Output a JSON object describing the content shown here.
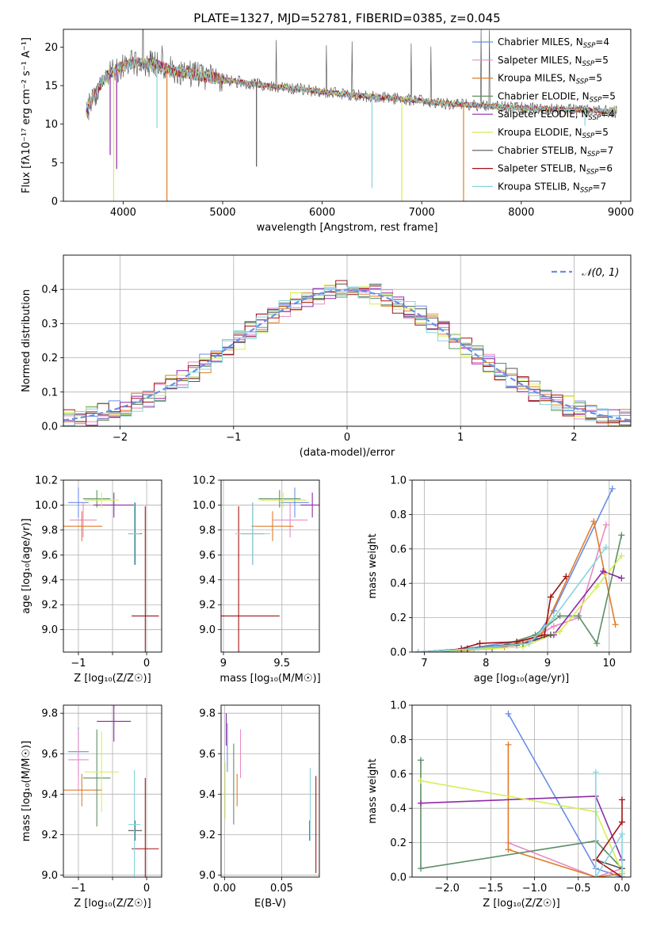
{
  "figure_title": "PLATE=1327, MJD=52781, FIBERID=0385, z=0.045",
  "colors": {
    "Chabrier MILES": "#6a8ee8",
    "Salpeter MILES": "#e98bc4",
    "Kroupa MILES": "#e07d2a",
    "Chabrier ELODIE": "#5e8f68",
    "Salpeter ELODIE": "#8e2aa6",
    "Kroupa ELODIE": "#d6ee52",
    "Chabrier STELIB": "#555555",
    "Salpeter STELIB": "#a31414",
    "Kroupa STELIB": "#86d6dd",
    "gauss": "#6a8ee8"
  },
  "chart_data": [
    {
      "id": "spectrum",
      "type": "line",
      "title": "PLATE=1327, MJD=52781, FIBERID=0385, z=0.045",
      "xlabel": "wavelength [Angstrom, rest frame]",
      "ylabel": "Flux [fλ10⁻¹⁷ erg cm⁻² s⁻¹ A⁻¹]",
      "xlim": [
        3400,
        9100
      ],
      "ylim": [
        0,
        22.3
      ],
      "xticks": [
        4000,
        5000,
        6000,
        7000,
        8000,
        9000
      ],
      "yticks": [
        0,
        5,
        10,
        15,
        20
      ],
      "grid": false,
      "legend_position": "top-right",
      "legend": [
        {
          "model": "Chabrier MILES",
          "label": "Chabrier MILES, N",
          "sub": "SSP",
          "tail": "=4"
        },
        {
          "model": "Salpeter MILES",
          "label": "Salpeter MILES, N",
          "sub": "SSP",
          "tail": "=5"
        },
        {
          "model": "Kroupa MILES",
          "label": "Kroupa MILES, N",
          "sub": "SSP",
          "tail": "=5"
        },
        {
          "model": "Chabrier ELODIE",
          "label": "Chabrier ELODIE, N",
          "sub": "SSP",
          "tail": "=5"
        },
        {
          "model": "Salpeter ELODIE",
          "label": "Salpeter ELODIE, N",
          "sub": "SSP",
          "tail": "=4"
        },
        {
          "model": "Kroupa ELODIE",
          "label": "Kroupa ELODIE, N",
          "sub": "SSP",
          "tail": "=5"
        },
        {
          "model": "Chabrier STELIB",
          "label": "Chabrier STELIB, N",
          "sub": "SSP",
          "tail": "=7"
        },
        {
          "model": "Salpeter STELIB",
          "label": "Salpeter STELIB, N",
          "sub": "SSP",
          "tail": "=6"
        },
        {
          "model": "Kroupa STELIB",
          "label": "Kroupa STELIB, N",
          "sub": "SSP",
          "tail": "=7"
        }
      ],
      "continuum": {
        "x": [
          3630,
          3700,
          3800,
          3900,
          4000,
          4100,
          4300,
          4500,
          4800,
          5000,
          5300,
          5600,
          6000,
          6300,
          6600,
          7000,
          7300,
          7600,
          8000,
          8400,
          8800,
          9000
        ],
        "y": [
          11.5,
          13.5,
          15.8,
          16.8,
          17.5,
          18.0,
          17.8,
          17.0,
          16.2,
          15.8,
          15.2,
          14.8,
          14.2,
          13.8,
          13.5,
          13.0,
          12.6,
          12.4,
          12.1,
          11.9,
          11.7,
          11.6
        ]
      },
      "dips": [
        {
          "model": "Salpeter ELODIE",
          "x": 3870,
          "y": 6.0
        },
        {
          "model": "Salpeter ELODIE",
          "x": 3935,
          "y": 4.2
        },
        {
          "model": "Kroupa ELODIE",
          "x": 3905,
          "y": 0
        },
        {
          "model": "Kroupa MILES",
          "x": 4440,
          "y": 0
        },
        {
          "model": "Kroupa STELIB",
          "x": 4340,
          "y": 9.5
        },
        {
          "model": "Chabrier STELIB",
          "x": 5340,
          "y": 4.5
        },
        {
          "model": "Kroupa STELIB",
          "x": 6500,
          "y": 1.7
        },
        {
          "model": "Kroupa ELODIE",
          "x": 6800,
          "y": 0
        },
        {
          "model": "Kroupa MILES",
          "x": 7420,
          "y": 0
        },
        {
          "model": "Kroupa STELIB",
          "x": 8640,
          "y": 9.8
        }
      ]
    },
    {
      "id": "residuals",
      "type": "step",
      "xlabel": "(data-model)/error",
      "ylabel": "Normed distribution",
      "xlim": [
        -2.5,
        2.5
      ],
      "ylim": [
        0,
        0.5
      ],
      "xticks": [
        -2,
        -1,
        0,
        1,
        2
      ],
      "yticks": [
        0.0,
        0.1,
        0.2,
        0.3,
        0.4
      ],
      "grid": true,
      "legend_position": "top-right",
      "legend_label": "𝒩(0, 1)",
      "bin_width": 0.1,
      "reference_curve": "standard normal N(0,1)"
    },
    {
      "id": "age-vs-Z",
      "type": "errorbar",
      "xlabel": "Z [log₁₀(Z/Z☉)]",
      "ylabel": "age  [log₁₀(age/yr)]",
      "xlim": [
        -1.22,
        0.22
      ],
      "ylim": [
        8.82,
        10.2
      ],
      "xticks": [
        -1,
        -0.5,
        0
      ],
      "xticklabels": [
        "−1",
        "",
        "0"
      ],
      "yticks": [
        9.0,
        9.2,
        9.4,
        9.6,
        9.8,
        10.0,
        10.2
      ],
      "grid": true,
      "points": [
        {
          "model": "Chabrier MILES",
          "x": -1.0,
          "xerr": 0.15,
          "y": 10.02,
          "yerr": 0.12
        },
        {
          "model": "Salpeter MILES",
          "x": -0.93,
          "xerr": 0.2,
          "y": 9.88,
          "yerr": 0.14
        },
        {
          "model": "Kroupa MILES",
          "x": -0.95,
          "xerr": 0.3,
          "y": 9.83,
          "yerr": 0.12
        },
        {
          "model": "Chabrier ELODIE",
          "x": -0.73,
          "xerr": 0.2,
          "y": 10.05,
          "yerr": 0.07
        },
        {
          "model": "Salpeter ELODIE",
          "x": -0.48,
          "xerr": 0.3,
          "y": 10.0,
          "yerr": 0.1
        },
        {
          "model": "Kroupa ELODIE",
          "x": -0.66,
          "xerr": 0.25,
          "y": 10.04,
          "yerr": 0.06
        },
        {
          "model": "Chabrier STELIB",
          "x": -0.17,
          "xerr": 0.1,
          "y": 9.77,
          "yerr": 0.25
        },
        {
          "model": "Salpeter STELIB",
          "x": -0.02,
          "xerr": 0.2,
          "y": 9.11,
          "yerr": 0.88
        },
        {
          "model": "Kroupa STELIB",
          "x": -0.18,
          "xerr": 0.09,
          "y": 9.77,
          "yerr": 0.25
        }
      ]
    },
    {
      "id": "age-vs-mass",
      "type": "errorbar",
      "xlabel": "mass [log₁₀(M/M☉)]",
      "ylabel": "",
      "xlim": [
        8.98,
        9.82
      ],
      "ylim": [
        8.82,
        10.2
      ],
      "xticks": [
        9.0,
        9.5
      ],
      "yticks": [
        9.0,
        9.2,
        9.4,
        9.6,
        9.8,
        10.0,
        10.2
      ],
      "grid": true,
      "points": [
        {
          "model": "Chabrier MILES",
          "x": 9.61,
          "xerr": 0.12,
          "y": 10.02,
          "yerr": 0.12
        },
        {
          "model": "Salpeter MILES",
          "x": 9.57,
          "xerr": 0.15,
          "y": 9.88,
          "yerr": 0.14
        },
        {
          "model": "Kroupa MILES",
          "x": 9.42,
          "xerr": 0.18,
          "y": 9.83,
          "yerr": 0.12
        },
        {
          "model": "Chabrier ELODIE",
          "x": 9.48,
          "xerr": 0.18,
          "y": 10.05,
          "yerr": 0.07
        },
        {
          "model": "Salpeter ELODIE",
          "x": 9.76,
          "xerr": 0.1,
          "y": 10.0,
          "yerr": 0.1
        },
        {
          "model": "Kroupa ELODIE",
          "x": 9.51,
          "xerr": 0.2,
          "y": 10.04,
          "yerr": 0.06
        },
        {
          "model": "Chabrier STELIB",
          "x": 9.25,
          "xerr": 0.1,
          "y": 9.77,
          "yerr": 0.25
        },
        {
          "model": "Salpeter STELIB",
          "x": 9.13,
          "xerr": 0.35,
          "y": 9.11,
          "yerr": 0.88
        },
        {
          "model": "Kroupa STELIB",
          "x": 9.25,
          "xerr": 0.15,
          "y": 9.77,
          "yerr": 0.25
        }
      ]
    },
    {
      "id": "weight-vs-age",
      "type": "line",
      "xlabel": "age  [log₁₀(age/yr)]",
      "ylabel": "mass weight",
      "xlim": [
        6.8,
        10.35
      ],
      "ylim": [
        0,
        1.0
      ],
      "xticks": [
        7,
        8,
        9,
        10
      ],
      "yticks": [
        0.0,
        0.2,
        0.4,
        0.6,
        0.8,
        1.0
      ],
      "grid": true,
      "series": [
        {
          "model": "Chabrier MILES",
          "x": [
            6.9,
            7.7,
            8.8,
            9.1,
            10.05
          ],
          "y": [
            0.0,
            0.02,
            0.08,
            0.24,
            0.95
          ]
        },
        {
          "model": "Salpeter MILES",
          "x": [
            6.9,
            7.7,
            8.6,
            9.1,
            9.5,
            9.95
          ],
          "y": [
            0.0,
            0.02,
            0.05,
            0.15,
            0.2,
            0.74
          ]
        },
        {
          "model": "Kroupa MILES",
          "x": [
            6.9,
            7.7,
            8.3,
            8.9,
            9.75,
            10.1
          ],
          "y": [
            0.0,
            0.01,
            0.03,
            0.1,
            0.76,
            0.16
          ]
        },
        {
          "model": "Chabrier ELODIE",
          "x": [
            6.9,
            8.1,
            8.8,
            9.2,
            9.5,
            9.8,
            10.2
          ],
          "y": [
            0.0,
            0.02,
            0.1,
            0.21,
            0.21,
            0.05,
            0.68
          ]
        },
        {
          "model": "Salpeter ELODIE",
          "x": [
            6.9,
            8.5,
            9.1,
            9.9,
            10.2
          ],
          "y": [
            0.0,
            0.04,
            0.1,
            0.47,
            0.43
          ]
        },
        {
          "model": "Kroupa ELODIE",
          "x": [
            6.9,
            8.6,
            9.2,
            9.8,
            10.2
          ],
          "y": [
            0.0,
            0.03,
            0.12,
            0.38,
            0.56
          ]
        },
        {
          "model": "Chabrier STELIB",
          "x": [
            6.9,
            7.7,
            8.6,
            9.05
          ],
          "y": [
            0.0,
            0.02,
            0.05,
            0.1
          ]
        },
        {
          "model": "Salpeter STELIB",
          "x": [
            7.6,
            7.9,
            8.5,
            8.95,
            9.05,
            9.3
          ],
          "y": [
            0.02,
            0.05,
            0.06,
            0.1,
            0.32,
            0.44
          ]
        },
        {
          "model": "Kroupa STELIB",
          "x": [
            6.9,
            7.8,
            8.7,
            9.1,
            9.95
          ],
          "y": [
            0.0,
            0.02,
            0.05,
            0.2,
            0.61
          ]
        }
      ]
    },
    {
      "id": "mass-vs-Z",
      "type": "errorbar",
      "xlabel": "Z [log₁₀(Z/Z☉)]",
      "ylabel": "mass [log₁₀(M/M☉)]",
      "xlim": [
        -1.22,
        0.22
      ],
      "ylim": [
        8.99,
        9.84
      ],
      "xticks": [
        -1,
        -0.5,
        0
      ],
      "xticklabels": [
        "−1",
        "",
        "0"
      ],
      "yticks": [
        9.0,
        9.2,
        9.4,
        9.6,
        9.8
      ],
      "grid": true,
      "points": [
        {
          "model": "Chabrier MILES",
          "x": -1.0,
          "xerr": 0.15,
          "y": 9.61,
          "yerr": 0.12
        },
        {
          "model": "Salpeter MILES",
          "x": -1.0,
          "xerr": 0.15,
          "y": 9.57,
          "yerr": 0.15
        },
        {
          "model": "Kroupa MILES",
          "x": -0.95,
          "xerr": 0.3,
          "y": 9.42,
          "yerr": 0.08
        },
        {
          "model": "Chabrier ELODIE",
          "x": -0.73,
          "xerr": 0.2,
          "y": 9.48,
          "yerr": 0.24
        },
        {
          "model": "Salpeter ELODIE",
          "x": -0.48,
          "xerr": 0.25,
          "y": 9.76,
          "yerr": 0.1
        },
        {
          "model": "Kroupa ELODIE",
          "x": -0.66,
          "xerr": 0.25,
          "y": 9.51,
          "yerr": 0.2
        },
        {
          "model": "Chabrier STELIB",
          "x": -0.17,
          "xerr": 0.1,
          "y": 9.22,
          "yerr": 0.05
        },
        {
          "model": "Salpeter STELIB",
          "x": -0.02,
          "xerr": 0.2,
          "y": 9.13,
          "yerr": 0.35
        },
        {
          "model": "Kroupa STELIB",
          "x": -0.18,
          "xerr": 0.09,
          "y": 9.25,
          "yerr": 0.27
        }
      ]
    },
    {
      "id": "mass-vs-ebv",
      "type": "errorbar",
      "xlabel": "E(B-V)",
      "ylabel": "",
      "xlim": [
        -0.003,
        0.083
      ],
      "ylim": [
        8.99,
        9.84
      ],
      "xticks": [
        0.0,
        0.05
      ],
      "xticklabels": [
        "0.00",
        "0.05"
      ],
      "yticks": [
        9.0,
        9.2,
        9.4,
        9.6,
        9.8
      ],
      "grid": true,
      "points": [
        {
          "model": "Chabrier MILES",
          "x": 0.0025,
          "xerr": 0,
          "y": 9.63,
          "yerr": 0.12
        },
        {
          "model": "Salpeter MILES",
          "x": 0.014,
          "xerr": 0,
          "y": 9.6,
          "yerr": 0.12
        },
        {
          "model": "Kroupa MILES",
          "x": 0.011,
          "xerr": 0,
          "y": 9.42,
          "yerr": 0.08
        },
        {
          "model": "Chabrier ELODIE",
          "x": 0.008,
          "xerr": 0,
          "y": 9.45,
          "yerr": 0.2
        },
        {
          "model": "Salpeter ELODIE",
          "x": 0.0015,
          "xerr": 0,
          "y": 9.72,
          "yerr": 0.08
        },
        {
          "model": "Kroupa ELODIE",
          "x": 0.0005,
          "xerr": 0,
          "y": 9.42,
          "yerr": 0.14
        },
        {
          "model": "Chabrier STELIB",
          "x": 0.0745,
          "xerr": 0,
          "y": 9.22,
          "yerr": 0.05
        },
        {
          "model": "Salpeter STELIB",
          "x": 0.08,
          "xerr": 0,
          "y": 9.25,
          "yerr": 0.24
        },
        {
          "model": "Kroupa STELIB",
          "x": 0.075,
          "xerr": 0,
          "y": 9.35,
          "yerr": 0.18
        }
      ]
    },
    {
      "id": "weight-vs-Z",
      "type": "line",
      "xlabel": "Z [log₁₀(Z/Z☉)]",
      "ylabel": "mass weight",
      "xlim": [
        -2.4,
        0.1
      ],
      "ylim": [
        0,
        1.0
      ],
      "xticks": [
        -2.0,
        -1.5,
        -1.0,
        -0.5,
        0.0
      ],
      "xticklabels": [
        "−2.0",
        "−1.5",
        "−1.0",
        "−0.5",
        "0.0"
      ],
      "yticks": [
        0.0,
        0.2,
        0.4,
        0.6,
        0.8,
        1.0
      ],
      "grid": true,
      "series": [
        {
          "model": "Chabrier MILES",
          "x": [
            -1.3,
            -0.3,
            0.0
          ],
          "y": [
            0.95,
            0.05,
            0.0
          ]
        },
        {
          "model": "Salpeter MILES",
          "x": [
            -1.3,
            -0.3,
            0.0
          ],
          "y": [
            0.2,
            0.0,
            0.05
          ]
        },
        {
          "model": "Kroupa MILES",
          "x": [
            -1.3,
            -1.3,
            -0.3,
            0.0
          ],
          "y": [
            0.77,
            0.16,
            0.0,
            0.02
          ]
        },
        {
          "model": "Chabrier ELODIE",
          "x": [
            -2.3,
            -2.3,
            -0.3,
            0.0
          ],
          "y": [
            0.68,
            0.05,
            0.21,
            0.05
          ]
        },
        {
          "model": "Salpeter ELODIE",
          "x": [
            -2.3,
            -0.3,
            0.0
          ],
          "y": [
            0.43,
            0.47,
            0.1
          ]
        },
        {
          "model": "Kroupa ELODIE",
          "x": [
            -2.3,
            -0.3,
            0.0
          ],
          "y": [
            0.56,
            0.38,
            0.03
          ]
        },
        {
          "model": "Chabrier STELIB",
          "x": [
            -0.3,
            0.0
          ],
          "y": [
            0.1,
            0.05
          ]
        },
        {
          "model": "Salpeter STELIB",
          "x": [
            0.0,
            0.0,
            -0.3,
            0.0
          ],
          "y": [
            0.45,
            0.32,
            0.1,
            0.0
          ]
        },
        {
          "model": "Kroupa STELIB",
          "x": [
            -0.3,
            -0.3,
            0.0,
            0.0
          ],
          "y": [
            0.61,
            0.0,
            0.25,
            0.02
          ]
        }
      ]
    }
  ]
}
